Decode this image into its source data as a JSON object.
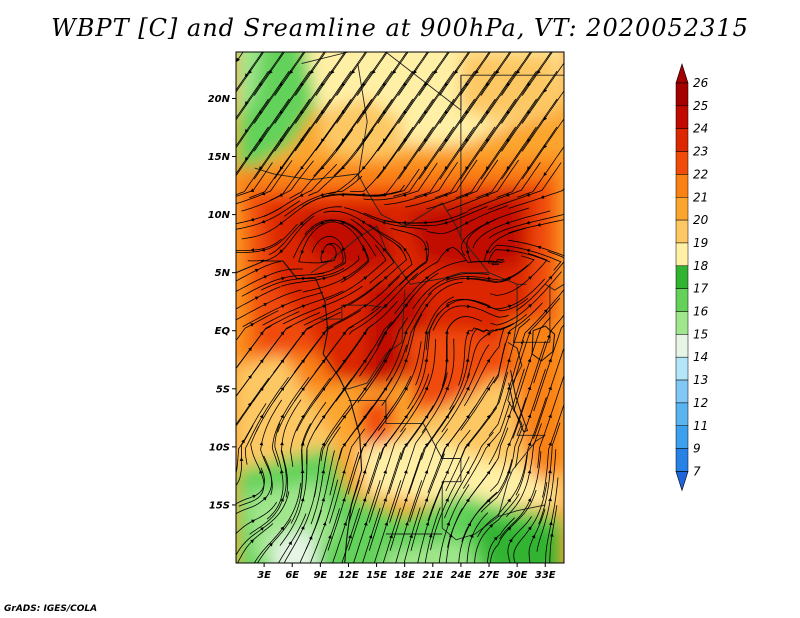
{
  "title": "WBPT [C] and Sreamline at 900hPa, VT: 2020052315",
  "credit": "GrADS: IGES/COLA",
  "map": {
    "lon_range": [
      0,
      35
    ],
    "lat_range": [
      -20,
      24
    ],
    "lon_ticks": [
      {
        "value": 3,
        "label": "3E"
      },
      {
        "value": 6,
        "label": "6E"
      },
      {
        "value": 9,
        "label": "9E"
      },
      {
        "value": 12,
        "label": "12E"
      },
      {
        "value": 15,
        "label": "15E"
      },
      {
        "value": 18,
        "label": "18E"
      },
      {
        "value": 21,
        "label": "21E"
      },
      {
        "value": 24,
        "label": "24E"
      },
      {
        "value": 27,
        "label": "27E"
      },
      {
        "value": 30,
        "label": "30E"
      },
      {
        "value": 33,
        "label": "33E"
      }
    ],
    "lat_ticks": [
      {
        "value": 20,
        "label": "20N"
      },
      {
        "value": 15,
        "label": "15N"
      },
      {
        "value": 10,
        "label": "10N"
      },
      {
        "value": 5,
        "label": "5N"
      },
      {
        "value": 0,
        "label": "EQ"
      },
      {
        "value": -5,
        "label": "5S"
      },
      {
        "value": -10,
        "label": "10S"
      },
      {
        "value": -15,
        "label": "15S"
      }
    ]
  },
  "colorbar": {
    "levels": [
      {
        "label": "26",
        "color": "#a50000"
      },
      {
        "label": "25",
        "color": "#c00a00"
      },
      {
        "label": "24",
        "color": "#dc2800"
      },
      {
        "label": "23",
        "color": "#f04b0a"
      },
      {
        "label": "22",
        "color": "#fa8214"
      },
      {
        "label": "21",
        "color": "#fca52d"
      },
      {
        "label": "20",
        "color": "#fdc864"
      },
      {
        "label": "19",
        "color": "#fff0a5"
      },
      {
        "label": "18",
        "color": "#32b432"
      },
      {
        "label": "17",
        "color": "#64d25a"
      },
      {
        "label": "16",
        "color": "#a0e68c"
      },
      {
        "label": "15",
        "color": "#e6f5e6"
      },
      {
        "label": "14",
        "color": "#b4e6fa"
      },
      {
        "label": "13",
        "color": "#82c8f5"
      },
      {
        "label": "12",
        "color": "#5ab4f0"
      },
      {
        "label": "11",
        "color": "#3ca0ec"
      },
      {
        "label": "9",
        "color": "#2882e6"
      },
      {
        "label": "7",
        "color": "#1e64dc"
      }
    ],
    "top_arrow_color": "#a50000",
    "bottom_arrow_color": "#1e64dc"
  },
  "field_colors": {
    "c26": "#a50000",
    "c25": "#c00a00",
    "c24": "#dc2800",
    "c23": "#f04b0a",
    "c22": "#fa8214",
    "c21": "#fca52d",
    "c20": "#fdc864",
    "c19": "#fff0a5",
    "c18": "#32b432",
    "c17": "#64d25a",
    "c16": "#a0e68c",
    "c15": "#e6f5e6"
  }
}
